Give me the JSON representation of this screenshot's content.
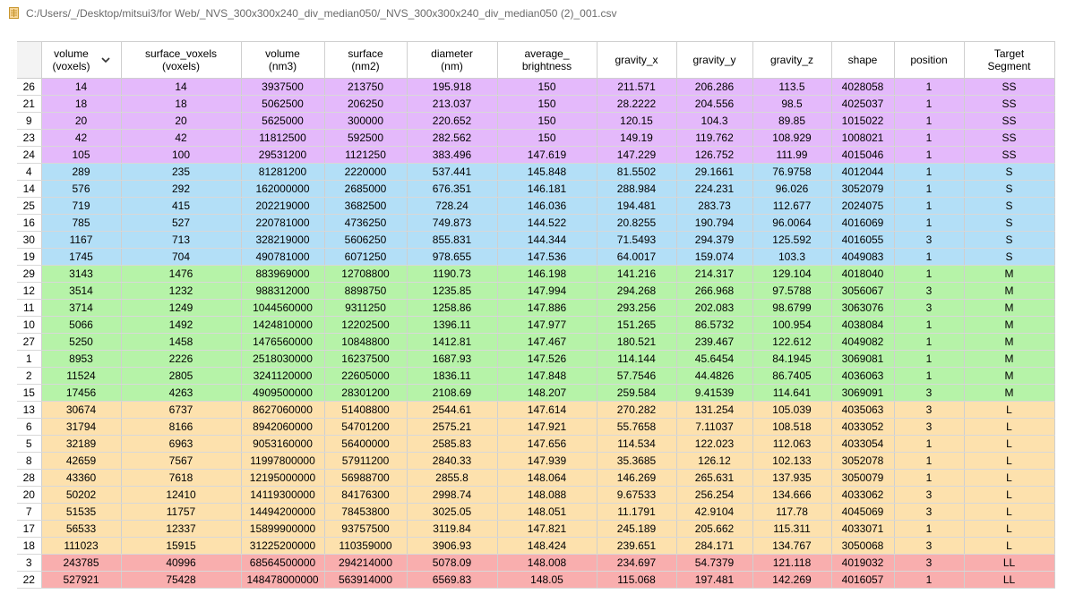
{
  "window": {
    "path": "C:/Users/_/Desktop/mitsui3/for Web/_NVS_300x300x240_div_median050/_NVS_300x300x240_div_median050 (2)_001.csv"
  },
  "colors": {
    "SS": "#e4b9fb",
    "S": "#b3dff7",
    "M": "#b6f3a8",
    "L": "#fde1ad",
    "LL": "#f9aeae"
  },
  "table": {
    "columns": [
      {
        "line1": "volume",
        "line2": "(voxels)",
        "sorted": true
      },
      {
        "line1": "surface_voxels",
        "line2": "(voxels)"
      },
      {
        "line1": "volume",
        "line2": "(nm3)"
      },
      {
        "line1": "surface",
        "line2": "(nm2)"
      },
      {
        "line1": "diameter",
        "line2": "(nm)"
      },
      {
        "line1": "average_",
        "line2": "brightness"
      },
      {
        "line1": "gravity_x",
        "line2": ""
      },
      {
        "line1": "gravity_y",
        "line2": ""
      },
      {
        "line1": "gravity_z",
        "line2": ""
      },
      {
        "line1": "shape",
        "line2": ""
      },
      {
        "line1": "position",
        "line2": ""
      },
      {
        "line1": "Target",
        "line2": "Segment"
      }
    ],
    "rows": [
      {
        "id": "26",
        "seg": "SS",
        "cells": [
          "14",
          "14",
          "3937500",
          "213750",
          "195.918",
          "150",
          "211.571",
          "206.286",
          "113.5",
          "4028058",
          "1",
          "SS"
        ]
      },
      {
        "id": "21",
        "seg": "SS",
        "cells": [
          "18",
          "18",
          "5062500",
          "206250",
          "213.037",
          "150",
          "28.2222",
          "204.556",
          "98.5",
          "4025037",
          "1",
          "SS"
        ]
      },
      {
        "id": "9",
        "seg": "SS",
        "cells": [
          "20",
          "20",
          "5625000",
          "300000",
          "220.652",
          "150",
          "120.15",
          "104.3",
          "89.85",
          "1015022",
          "1",
          "SS"
        ]
      },
      {
        "id": "23",
        "seg": "SS",
        "cells": [
          "42",
          "42",
          "11812500",
          "592500",
          "282.562",
          "150",
          "149.19",
          "119.762",
          "108.929",
          "1008021",
          "1",
          "SS"
        ]
      },
      {
        "id": "24",
        "seg": "SS",
        "cells": [
          "105",
          "100",
          "29531200",
          "1121250",
          "383.496",
          "147.619",
          "147.229",
          "126.752",
          "111.99",
          "4015046",
          "1",
          "SS"
        ]
      },
      {
        "id": "4",
        "seg": "S",
        "cells": [
          "289",
          "235",
          "81281200",
          "2220000",
          "537.441",
          "145.848",
          "81.5502",
          "29.1661",
          "76.9758",
          "4012044",
          "1",
          "S"
        ]
      },
      {
        "id": "14",
        "seg": "S",
        "cells": [
          "576",
          "292",
          "162000000",
          "2685000",
          "676.351",
          "146.181",
          "288.984",
          "224.231",
          "96.026",
          "3052079",
          "1",
          "S"
        ]
      },
      {
        "id": "25",
        "seg": "S",
        "cells": [
          "719",
          "415",
          "202219000",
          "3682500",
          "728.24",
          "146.036",
          "194.481",
          "283.73",
          "112.677",
          "2024075",
          "1",
          "S"
        ]
      },
      {
        "id": "16",
        "seg": "S",
        "cells": [
          "785",
          "527",
          "220781000",
          "4736250",
          "749.873",
          "144.522",
          "20.8255",
          "190.794",
          "96.0064",
          "4016069",
          "1",
          "S"
        ]
      },
      {
        "id": "30",
        "seg": "S",
        "cells": [
          "1167",
          "713",
          "328219000",
          "5606250",
          "855.831",
          "144.344",
          "71.5493",
          "294.379",
          "125.592",
          "4016055",
          "3",
          "S"
        ]
      },
      {
        "id": "19",
        "seg": "S",
        "cells": [
          "1745",
          "704",
          "490781000",
          "6071250",
          "978.655",
          "147.536",
          "64.0017",
          "159.074",
          "103.3",
          "4049083",
          "1",
          "S"
        ]
      },
      {
        "id": "29",
        "seg": "M",
        "cells": [
          "3143",
          "1476",
          "883969000",
          "12708800",
          "1190.73",
          "146.198",
          "141.216",
          "214.317",
          "129.104",
          "4018040",
          "1",
          "M"
        ]
      },
      {
        "id": "12",
        "seg": "M",
        "cells": [
          "3514",
          "1232",
          "988312000",
          "8898750",
          "1235.85",
          "147.994",
          "294.268",
          "266.968",
          "97.5788",
          "3056067",
          "3",
          "M"
        ]
      },
      {
        "id": "11",
        "seg": "M",
        "cells": [
          "3714",
          "1249",
          "1044560000",
          "9311250",
          "1258.86",
          "147.886",
          "293.256",
          "202.083",
          "98.6799",
          "3063076",
          "3",
          "M"
        ]
      },
      {
        "id": "10",
        "seg": "M",
        "cells": [
          "5066",
          "1492",
          "1424810000",
          "12202500",
          "1396.11",
          "147.977",
          "151.265",
          "86.5732",
          "100.954",
          "4038084",
          "1",
          "M"
        ]
      },
      {
        "id": "27",
        "seg": "M",
        "cells": [
          "5250",
          "1458",
          "1476560000",
          "10848800",
          "1412.81",
          "147.467",
          "180.521",
          "239.467",
          "122.612",
          "4049082",
          "1",
          "M"
        ]
      },
      {
        "id": "1",
        "seg": "M",
        "cells": [
          "8953",
          "2226",
          "2518030000",
          "16237500",
          "1687.93",
          "147.526",
          "114.144",
          "45.6454",
          "84.1945",
          "3069081",
          "1",
          "M"
        ]
      },
      {
        "id": "2",
        "seg": "M",
        "cells": [
          "11524",
          "2805",
          "3241120000",
          "22605000",
          "1836.11",
          "147.848",
          "57.7546",
          "44.4826",
          "86.7405",
          "4036063",
          "1",
          "M"
        ]
      },
      {
        "id": "15",
        "seg": "M",
        "cells": [
          "17456",
          "4263",
          "4909500000",
          "28301200",
          "2108.69",
          "148.207",
          "259.584",
          "9.41539",
          "114.641",
          "3069091",
          "3",
          "M"
        ]
      },
      {
        "id": "13",
        "seg": "L",
        "cells": [
          "30674",
          "6737",
          "8627060000",
          "51408800",
          "2544.61",
          "147.614",
          "270.282",
          "131.254",
          "105.039",
          "4035063",
          "3",
          "L"
        ]
      },
      {
        "id": "6",
        "seg": "L",
        "cells": [
          "31794",
          "8166",
          "8942060000",
          "54701200",
          "2575.21",
          "147.921",
          "55.7658",
          "7.11037",
          "108.518",
          "4033052",
          "3",
          "L"
        ]
      },
      {
        "id": "5",
        "seg": "L",
        "cells": [
          "32189",
          "6963",
          "9053160000",
          "56400000",
          "2585.83",
          "147.656",
          "114.534",
          "122.023",
          "112.063",
          "4033054",
          "1",
          "L"
        ]
      },
      {
        "id": "8",
        "seg": "L",
        "cells": [
          "42659",
          "7567",
          "11997800000",
          "57911200",
          "2840.33",
          "147.939",
          "35.3685",
          "126.12",
          "102.133",
          "3052078",
          "1",
          "L"
        ]
      },
      {
        "id": "28",
        "seg": "L",
        "cells": [
          "43360",
          "7618",
          "12195000000",
          "56988700",
          "2855.8",
          "148.064",
          "146.269",
          "265.631",
          "137.935",
          "3050079",
          "1",
          "L"
        ]
      },
      {
        "id": "20",
        "seg": "L",
        "cells": [
          "50202",
          "12410",
          "14119300000",
          "84176300",
          "2998.74",
          "148.088",
          "9.67533",
          "256.254",
          "134.666",
          "4033062",
          "3",
          "L"
        ]
      },
      {
        "id": "7",
        "seg": "L",
        "cells": [
          "51535",
          "11757",
          "14494200000",
          "78453800",
          "3025.05",
          "148.051",
          "11.1791",
          "42.9104",
          "117.78",
          "4045069",
          "3",
          "L"
        ]
      },
      {
        "id": "17",
        "seg": "L",
        "cells": [
          "56533",
          "12337",
          "15899900000",
          "93757500",
          "3119.84",
          "147.821",
          "245.189",
          "205.662",
          "115.311",
          "4033071",
          "1",
          "L"
        ]
      },
      {
        "id": "18",
        "seg": "L",
        "cells": [
          "111023",
          "15915",
          "31225200000",
          "110359000",
          "3906.93",
          "148.424",
          "239.651",
          "284.171",
          "134.767",
          "3050068",
          "3",
          "L"
        ]
      },
      {
        "id": "3",
        "seg": "LL",
        "cells": [
          "243785",
          "40996",
          "68564500000",
          "294214000",
          "5078.09",
          "148.008",
          "234.697",
          "54.7379",
          "121.118",
          "4019032",
          "3",
          "LL"
        ]
      },
      {
        "id": "22",
        "seg": "LL",
        "cells": [
          "527921",
          "75428",
          "148478000000",
          "563914000",
          "6569.83",
          "148.05",
          "115.068",
          "197.481",
          "142.269",
          "4016057",
          "1",
          "LL"
        ]
      }
    ]
  }
}
